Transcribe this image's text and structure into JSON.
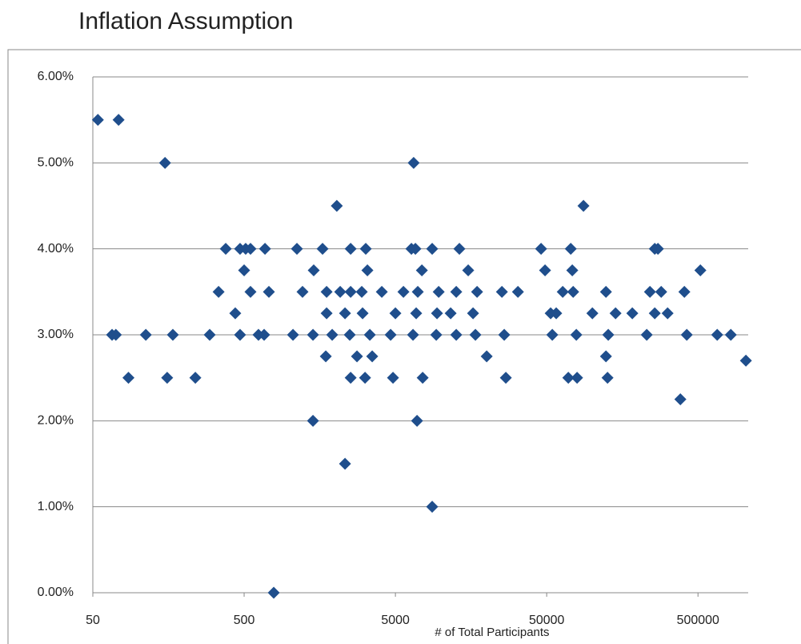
{
  "chart_data": {
    "type": "scatter",
    "title": "Inflation Assumption",
    "x_label": "# of Total Participants",
    "color": "#1f4e8c",
    "xscale": "log",
    "grid": true,
    "xlim": [
      50,
      1100000
    ],
    "xticks": [
      50,
      500,
      5000,
      50000,
      500000
    ],
    "ylim": [
      0,
      6
    ],
    "yticks": [
      {
        "value": 0,
        "label": "0.00%"
      },
      {
        "value": 1,
        "label": "1.00%"
      },
      {
        "value": 2,
        "label": "2.00%"
      },
      {
        "value": 3,
        "label": "3.00%"
      },
      {
        "value": 4,
        "label": "4.00%"
      },
      {
        "value": 5,
        "label": "5.00%"
      },
      {
        "value": 6,
        "label": "6.00%"
      }
    ],
    "x": [
      54,
      74,
      150,
      6600,
      2050,
      87500,
      378,
      470,
      512,
      551,
      687,
      1117,
      1650,
      2530,
      3185,
      6380,
      6780,
      8750,
      13240,
      45900,
      72100,
      259000,
      271800,
      500,
      1442,
      3265,
      7480,
      15140,
      48750,
      73800,
      518600,
      339,
      551,
      729,
      1216,
      1755,
      2158,
      2530,
      2997,
      4065,
      5650,
      7030,
      9660,
      12620,
      17330,
      25290,
      32270,
      63800,
      74800,
      123200,
      240700,
      285600,
      406400,
      437,
      1755,
      2322,
      3034,
      5000,
      6860,
      9420,
      11590,
      16300,
      53100,
      57800,
      100200,
      142600,
      184000,
      259000,
      314800,
      67,
      71,
      112,
      169,
      296,
      470,
      622,
      678,
      1052,
      1426,
      1910,
      2495,
      3387,
      4650,
      6535,
      9310,
      12620,
      16900,
      26200,
      54450,
      78500,
      127600,
      229200,
      421500,
      670000,
      824000,
      1733,
      2786,
      3512,
      20060,
      123200,
      1037000,
      86,
      155,
      238,
      2530,
      3150,
      4820,
      7570,
      26850,
      69500,
      79400,
      126200,
      382500,
      1426,
      6950,
      2322,
      8750,
      785
    ],
    "values": [
      5.5,
      5.5,
      5,
      5,
      4.5,
      4.5,
      4,
      4,
      4,
      4,
      4,
      4,
      4,
      4,
      4,
      4,
      4,
      4,
      4,
      4,
      4,
      4,
      4,
      3.75,
      3.75,
      3.75,
      3.75,
      3.75,
      3.75,
      3.75,
      3.75,
      3.5,
      3.5,
      3.5,
      3.5,
      3.5,
      3.5,
      3.5,
      3.5,
      3.5,
      3.5,
      3.5,
      3.5,
      3.5,
      3.5,
      3.5,
      3.5,
      3.5,
      3.5,
      3.5,
      3.5,
      3.5,
      3.5,
      3.25,
      3.25,
      3.25,
      3.25,
      3.25,
      3.25,
      3.25,
      3.25,
      3.25,
      3.25,
      3.25,
      3.25,
      3.25,
      3.25,
      3.25,
      3.25,
      3,
      3,
      3,
      3,
      3,
      3,
      3,
      3,
      3,
      3,
      3,
      3,
      3,
      3,
      3,
      3,
      3,
      3,
      3,
      3,
      3,
      3,
      3,
      3,
      3,
      3,
      2.75,
      2.75,
      2.75,
      2.75,
      2.75,
      2.7,
      2.5,
      2.5,
      2.5,
      2.5,
      2.5,
      2.5,
      2.5,
      2.5,
      2.5,
      2.5,
      2.5,
      2.25,
      2,
      2,
      1.5,
      1,
      0
    ]
  }
}
